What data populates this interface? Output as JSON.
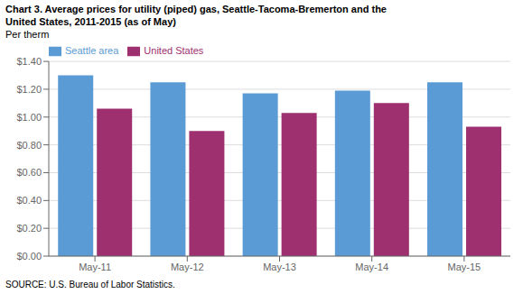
{
  "chart_data": {
    "type": "bar",
    "title": [
      "Chart 3. Average prices for utility (piped) gas, Seattle-Tacoma-Bremerton and the",
      "United States, 2011-2015  (as of May)"
    ],
    "ylabel": "Per therm",
    "source": "SOURCE: U.S. Bureau of Labor Statistics.",
    "categories": [
      "May-11",
      "May-12",
      "May-13",
      "May-14",
      "May-15"
    ],
    "series": [
      {
        "name": "Seattle area",
        "color": "#5B9BD5",
        "values": [
          1.3,
          1.25,
          1.17,
          1.19,
          1.25
        ]
      },
      {
        "name": "United States",
        "color": "#9E3070",
        "values": [
          1.06,
          0.9,
          1.03,
          1.1,
          0.93
        ]
      }
    ],
    "ylim": [
      0.0,
      1.4
    ],
    "yticks": [
      {
        "value": 0.0,
        "label": "$0.00"
      },
      {
        "value": 0.2,
        "label": "$0.20"
      },
      {
        "value": 0.4,
        "label": "$0.40"
      },
      {
        "value": 0.6,
        "label": "$0.60"
      },
      {
        "value": 0.8,
        "label": "$0.80"
      },
      {
        "value": 1.0,
        "label": "$1.00"
      },
      {
        "value": 1.2,
        "label": "$1.20"
      },
      {
        "value": 1.4,
        "label": "$1.40"
      }
    ],
    "grid": true,
    "legend": "upper left"
  }
}
